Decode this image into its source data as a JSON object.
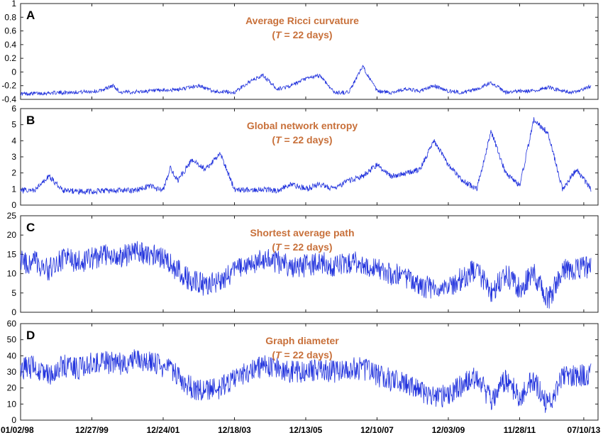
{
  "chart_data": [
    {
      "type": "line",
      "panel_label": "A",
      "title": "Average Ricci curvature",
      "subtitle_prefix": "T",
      "subtitle_suffix": " = 22 days",
      "ylim": [
        -0.4,
        1
      ],
      "yticks": [
        -0.4,
        -0.2,
        0,
        0.2,
        0.4,
        0.6,
        0.8,
        1
      ],
      "ytick_labels": [
        "-0.4",
        "-0.2",
        "0",
        "0.2",
        "0.4",
        "0.6",
        "0.8",
        "1"
      ],
      "line_color": "#2233dd",
      "series": [
        {
          "x": [
            0,
            60,
            110,
            130,
            140,
            180,
            220,
            250,
            270,
            300,
            320,
            340,
            360,
            380,
            400,
            420,
            440,
            460,
            480,
            500,
            520,
            540,
            560,
            580,
            600,
            620,
            640,
            660,
            680,
            700,
            720,
            740,
            760,
            780,
            800
          ],
          "values": [
            -0.32,
            -0.3,
            -0.28,
            -0.2,
            -0.3,
            -0.28,
            -0.26,
            -0.2,
            -0.28,
            -0.3,
            -0.15,
            -0.05,
            -0.25,
            -0.2,
            -0.1,
            -0.05,
            -0.3,
            -0.3,
            0.08,
            -0.28,
            -0.3,
            -0.25,
            -0.28,
            -0.2,
            -0.28,
            -0.3,
            -0.25,
            -0.15,
            -0.3,
            -0.28,
            -0.28,
            -0.22,
            -0.28,
            -0.3,
            -0.2
          ]
        }
      ]
    },
    {
      "type": "line",
      "panel_label": "B",
      "title": "Global network entropy",
      "subtitle_prefix": "T",
      "subtitle_suffix": " = 22 days",
      "ylim": [
        0,
        6
      ],
      "yticks": [
        0,
        1,
        2,
        3,
        4,
        5,
        6
      ],
      "ytick_labels": [
        "0",
        "1",
        "2",
        "3",
        "4",
        "5",
        "6"
      ],
      "line_color": "#2233dd",
      "series": [
        {
          "x": [
            0,
            20,
            40,
            60,
            80,
            100,
            120,
            140,
            160,
            180,
            200,
            210,
            220,
            240,
            260,
            280,
            300,
            320,
            340,
            360,
            380,
            400,
            420,
            440,
            460,
            480,
            500,
            520,
            540,
            560,
            580,
            600,
            620,
            640,
            660,
            680,
            700,
            720,
            740,
            760,
            780,
            800
          ],
          "values": [
            0.9,
            0.9,
            1.8,
            0.9,
            0.85,
            0.85,
            0.9,
            0.9,
            0.9,
            1.2,
            0.9,
            2.3,
            1.5,
            2.8,
            2.2,
            3.2,
            1.0,
            0.95,
            1.0,
            0.9,
            1.3,
            1.0,
            1.3,
            1.0,
            1.5,
            1.8,
            2.5,
            1.8,
            2.0,
            2.2,
            4.0,
            2.5,
            1.5,
            1.0,
            4.6,
            2.0,
            1.2,
            5.3,
            4.5,
            1.0,
            2.2,
            1.0
          ]
        }
      ]
    },
    {
      "type": "line",
      "panel_label": "C",
      "title": "Shortest average path",
      "subtitle_prefix": "T",
      "subtitle_suffix": " = 22 days",
      "ylim": [
        0,
        25
      ],
      "yticks": [
        0,
        5,
        10,
        15,
        20,
        25
      ],
      "ytick_labels": [
        "0",
        "5",
        "10",
        "15",
        "20",
        "25"
      ],
      "line_color": "#2233dd",
      "series": [
        {
          "x": [
            0,
            20,
            40,
            60,
            80,
            100,
            120,
            140,
            160,
            180,
            200,
            220,
            240,
            260,
            280,
            300,
            320,
            340,
            360,
            380,
            400,
            420,
            440,
            460,
            480,
            500,
            520,
            540,
            560,
            580,
            600,
            620,
            640,
            660,
            680,
            700,
            720,
            740,
            760,
            780,
            800
          ],
          "values": [
            13,
            13,
            11,
            14,
            13,
            14,
            15,
            14,
            16,
            15,
            14,
            11,
            8,
            7,
            8,
            11,
            12,
            14,
            13,
            12,
            12,
            13,
            12,
            13,
            13,
            11,
            10,
            9,
            7,
            6,
            6,
            9,
            11,
            5,
            10,
            6,
            10,
            3,
            11,
            11,
            12
          ]
        }
      ]
    },
    {
      "type": "line",
      "panel_label": "D",
      "title": "Graph diameter",
      "subtitle_prefix": "T",
      "subtitle_suffix": " = 22 days",
      "ylim": [
        0,
        60
      ],
      "yticks": [
        0,
        10,
        20,
        30,
        40,
        50,
        60
      ],
      "ytick_labels": [
        "0",
        "10",
        "20",
        "30",
        "40",
        "50",
        "60"
      ],
      "line_color": "#2233dd",
      "series": [
        {
          "x": [
            0,
            20,
            40,
            60,
            80,
            100,
            120,
            140,
            160,
            180,
            200,
            220,
            240,
            260,
            280,
            300,
            320,
            340,
            360,
            380,
            400,
            420,
            440,
            460,
            480,
            500,
            520,
            540,
            560,
            580,
            600,
            620,
            640,
            660,
            680,
            700,
            720,
            740,
            760,
            780,
            800
          ],
          "values": [
            32,
            33,
            28,
            34,
            32,
            35,
            36,
            35,
            38,
            36,
            33,
            28,
            20,
            18,
            20,
            26,
            30,
            34,
            32,
            30,
            30,
            32,
            30,
            32,
            32,
            28,
            25,
            23,
            18,
            15,
            15,
            22,
            27,
            12,
            25,
            15,
            25,
            8,
            27,
            28,
            28
          ]
        }
      ]
    }
  ],
  "x_axis": {
    "tick_labels": [
      "01/02/98",
      "12/27/99",
      "12/24/01",
      "12/18/03",
      "12/13/05",
      "12/10/07",
      "12/03/09",
      "11/28/11",
      "07/10/13"
    ],
    "tick_positions": [
      0,
      100,
      200,
      300,
      400,
      500,
      600,
      700,
      790
    ],
    "xlim": [
      0,
      810
    ]
  }
}
